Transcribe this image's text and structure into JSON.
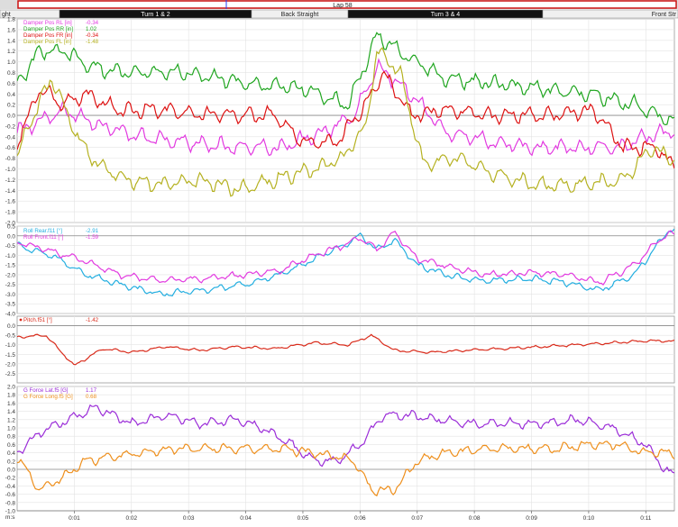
{
  "lap_bar": {
    "label": "Lap 58",
    "color": "#cc1111"
  },
  "sectors": [
    {
      "label": "ght",
      "dark": false
    },
    {
      "label": "Turn 1 & 2",
      "dark": true
    },
    {
      "label": "Back Straight",
      "dark": false
    },
    {
      "label": "Turn 3 & 4",
      "dark": true
    },
    {
      "label": "Front Str",
      "dark": false
    }
  ],
  "x_axis": {
    "unit": "m:s",
    "ticks": [
      "0:01",
      "0:02",
      "0:03",
      "0:04",
      "0:05",
      "0:06",
      "0:07",
      "0:08",
      "0:09",
      "0:10",
      "0:11"
    ]
  },
  "chart_data": [
    {
      "type": "line",
      "ylim": [
        -2.0,
        1.8
      ],
      "yticks": [
        "1.8",
        "1.6",
        "1.4",
        "1.2",
        "1.0",
        "0.8",
        "0.6",
        "0.4",
        "0.2",
        "0.0",
        "-0.2",
        "-0.4",
        "-0.6",
        "-0.8",
        "-1.0",
        "-1.2",
        "-1.4",
        "-1.6",
        "-1.8",
        "-2.0"
      ],
      "zero_line": true,
      "series": [
        {
          "name": "Damper Pos RL [in]",
          "value": "-0.34",
          "color": "#e23ae0",
          "points": [
            [
              0,
              -0.3
            ],
            [
              0.8,
              0.1
            ],
            [
              1.5,
              -0.2
            ],
            [
              2.2,
              -0.4
            ],
            [
              3.0,
              -0.5
            ],
            [
              3.8,
              -0.6
            ],
            [
              4.6,
              -0.6
            ],
            [
              5.4,
              -0.3
            ],
            [
              5.9,
              0.0
            ],
            [
              6.3,
              0.9
            ],
            [
              6.8,
              0.5
            ],
            [
              7.5,
              -0.3
            ],
            [
              8.3,
              -0.5
            ],
            [
              9.0,
              -0.6
            ],
            [
              9.8,
              -0.6
            ],
            [
              10.5,
              -0.6
            ],
            [
              11.0,
              -0.4
            ],
            [
              11.4,
              -0.3
            ]
          ]
        },
        {
          "name": "Damper Pos RR [in]",
          "value": "1.02",
          "color": "#1fa51f",
          "points": [
            [
              0,
              0.6
            ],
            [
              0.4,
              1.2
            ],
            [
              0.8,
              1.2
            ],
            [
              1.3,
              0.9
            ],
            [
              2.0,
              0.8
            ],
            [
              3.0,
              0.8
            ],
            [
              4.0,
              0.6
            ],
            [
              5.0,
              0.5
            ],
            [
              5.8,
              0.2
            ],
            [
              6.3,
              1.5
            ],
            [
              6.8,
              1.1
            ],
            [
              7.5,
              0.7
            ],
            [
              8.3,
              0.6
            ],
            [
              9.1,
              0.5
            ],
            [
              10.0,
              0.4
            ],
            [
              10.8,
              0.2
            ],
            [
              11.4,
              -0.1
            ]
          ]
        },
        {
          "name": "Damper Pos FR [in]",
          "value": "-0.34",
          "color": "#dd1111",
          "points": [
            [
              0,
              -0.5
            ],
            [
              0.4,
              0.5
            ],
            [
              0.8,
              0.2
            ],
            [
              1.2,
              0.4
            ],
            [
              1.8,
              0.1
            ],
            [
              2.5,
              0.1
            ],
            [
              3.5,
              0.0
            ],
            [
              4.5,
              0.0
            ],
            [
              5.0,
              -0.5
            ],
            [
              5.6,
              -0.5
            ],
            [
              6.1,
              0.2
            ],
            [
              6.4,
              0.8
            ],
            [
              6.9,
              0.0
            ],
            [
              7.5,
              0.1
            ],
            [
              8.3,
              0.0
            ],
            [
              9.3,
              0.0
            ],
            [
              10.1,
              0.1
            ],
            [
              10.6,
              -0.6
            ],
            [
              11.2,
              -0.6
            ],
            [
              11.4,
              -0.9
            ]
          ]
        },
        {
          "name": "Damper Pos FL [in]",
          "value": "-1.48",
          "color": "#b5b120",
          "points": [
            [
              0,
              -0.8
            ],
            [
              0.2,
              -0.2
            ],
            [
              0.6,
              0.7
            ],
            [
              1.1,
              -0.5
            ],
            [
              1.4,
              -0.9
            ],
            [
              1.9,
              -1.2
            ],
            [
              2.5,
              -1.3
            ],
            [
              3.2,
              -1.2
            ],
            [
              3.9,
              -1.4
            ],
            [
              4.5,
              -1.2
            ],
            [
              5.2,
              -1.0
            ],
            [
              5.7,
              -0.8
            ],
            [
              6.1,
              -0.2
            ],
            [
              6.3,
              1.2
            ],
            [
              6.7,
              0.8
            ],
            [
              7.1,
              -0.9
            ],
            [
              7.7,
              -0.8
            ],
            [
              8.4,
              -1.1
            ],
            [
              9.1,
              -1.3
            ],
            [
              9.8,
              -1.3
            ],
            [
              10.6,
              -1.2
            ],
            [
              11.1,
              -0.6
            ],
            [
              11.4,
              -0.8
            ]
          ]
        }
      ]
    },
    {
      "type": "line",
      "ylim": [
        -4.0,
        0.5
      ],
      "yticks": [
        "0.5",
        "0.0",
        "-0.5",
        "-1.0",
        "-1.5",
        "-2.0",
        "-2.5",
        "-3.0",
        "-3.5",
        "-4.0"
      ],
      "zero_line": true,
      "series": [
        {
          "name": "Roll Rear.f11 [°]",
          "value": "-2.91",
          "color": "#23aee0",
          "points": [
            [
              0,
              -0.5
            ],
            [
              0.6,
              -1.0
            ],
            [
              1.2,
              -2.0
            ],
            [
              1.8,
              -2.5
            ],
            [
              2.5,
              -3.0
            ],
            [
              3.2,
              -2.8
            ],
            [
              4.0,
              -2.5
            ],
            [
              4.6,
              -2.0
            ],
            [
              5.2,
              -1.2
            ],
            [
              5.7,
              -0.5
            ],
            [
              6.0,
              0.0
            ],
            [
              6.3,
              -0.7
            ],
            [
              6.6,
              -0.2
            ],
            [
              7.0,
              -1.5
            ],
            [
              7.6,
              -2.1
            ],
            [
              8.2,
              -2.3
            ],
            [
              9.0,
              -2.2
            ],
            [
              9.6,
              -2.4
            ],
            [
              10.2,
              -2.8
            ],
            [
              10.8,
              -2.0
            ],
            [
              11.2,
              -0.5
            ],
            [
              11.4,
              0.3
            ]
          ]
        },
        {
          "name": "Roll Front.f11 [°]",
          "value": "-1.59",
          "color": "#e23ae0",
          "points": [
            [
              0,
              -0.3
            ],
            [
              0.6,
              -0.8
            ],
            [
              1.2,
              -1.3
            ],
            [
              1.8,
              -2.0
            ],
            [
              2.5,
              -2.3
            ],
            [
              3.2,
              -2.2
            ],
            [
              4.0,
              -2.0
            ],
            [
              4.6,
              -1.8
            ],
            [
              5.2,
              -1.0
            ],
            [
              5.7,
              -0.5
            ],
            [
              6.0,
              -0.1
            ],
            [
              6.3,
              -0.7
            ],
            [
              6.6,
              0.2
            ],
            [
              7.0,
              -1.2
            ],
            [
              7.6,
              -1.6
            ],
            [
              8.2,
              -2.0
            ],
            [
              9.0,
              -1.9
            ],
            [
              9.6,
              -2.0
            ],
            [
              10.2,
              -2.4
            ],
            [
              10.8,
              -1.5
            ],
            [
              11.2,
              -0.3
            ],
            [
              11.4,
              0.1
            ]
          ]
        }
      ]
    },
    {
      "type": "line",
      "ylim": [
        -3.0,
        0.5
      ],
      "yticks": [
        "0.0",
        "-0.5",
        "-1.0",
        "-1.5",
        "-2.0",
        "-2.5"
      ],
      "zero_line": true,
      "series": [
        {
          "name": "Pitch.f51 [°]",
          "value": "-1.42",
          "color": "#d92b1b",
          "points": [
            [
              0,
              -0.6
            ],
            [
              0.5,
              -0.5
            ],
            [
              1.0,
              -2.1
            ],
            [
              1.5,
              -1.2
            ],
            [
              2.0,
              -1.4
            ],
            [
              2.6,
              -1.1
            ],
            [
              3.2,
              -1.3
            ],
            [
              3.8,
              -1.1
            ],
            [
              4.5,
              -1.2
            ],
            [
              5.2,
              -0.9
            ],
            [
              5.8,
              -1.0
            ],
            [
              6.2,
              -0.5
            ],
            [
              6.6,
              -1.3
            ],
            [
              7.2,
              -1.4
            ],
            [
              7.8,
              -1.3
            ],
            [
              8.5,
              -1.2
            ],
            [
              9.2,
              -1.1
            ],
            [
              9.8,
              -1.0
            ],
            [
              10.4,
              -0.9
            ],
            [
              11.0,
              -0.8
            ],
            [
              11.4,
              -0.8
            ]
          ]
        }
      ]
    },
    {
      "type": "line",
      "ylim": [
        -1.0,
        2.0
      ],
      "yticks": [
        "2.0",
        "1.8",
        "1.6",
        "1.4",
        "1.2",
        "1.0",
        "0.8",
        "0.6",
        "0.4",
        "0.2",
        "0.0",
        "-0.2",
        "-0.4",
        "-0.6",
        "-0.8",
        "-1.0"
      ],
      "zero_line": true,
      "series": [
        {
          "name": "G Force Lat.f5 [G]",
          "value": "1.17",
          "color": "#9b2dd8",
          "points": [
            [
              0,
              0.4
            ],
            [
              0.4,
              0.9
            ],
            [
              0.9,
              1.2
            ],
            [
              1.4,
              1.5
            ],
            [
              2.0,
              1.1
            ],
            [
              2.6,
              1.3
            ],
            [
              3.2,
              1.1
            ],
            [
              3.8,
              1.2
            ],
            [
              4.3,
              1.0
            ],
            [
              4.8,
              0.6
            ],
            [
              5.2,
              0.2
            ],
            [
              5.6,
              0.2
            ],
            [
              6.0,
              0.6
            ],
            [
              6.4,
              1.3
            ],
            [
              6.9,
              1.3
            ],
            [
              7.4,
              1.2
            ],
            [
              8.0,
              1.1
            ],
            [
              8.6,
              1.1
            ],
            [
              9.2,
              1.1
            ],
            [
              9.8,
              1.2
            ],
            [
              10.4,
              1.0
            ],
            [
              11.0,
              0.6
            ],
            [
              11.4,
              -0.1
            ]
          ]
        },
        {
          "name": "G Force Long.f5 [G]",
          "value": "0.68",
          "color": "#ee8f1c",
          "points": [
            [
              0,
              0.3
            ],
            [
              0.4,
              -0.5
            ],
            [
              0.8,
              -0.2
            ],
            [
              1.2,
              0.2
            ],
            [
              1.6,
              0.3
            ],
            [
              2.2,
              0.4
            ],
            [
              2.8,
              0.5
            ],
            [
              3.4,
              0.5
            ],
            [
              4.0,
              0.5
            ],
            [
              4.6,
              0.5
            ],
            [
              5.2,
              0.4
            ],
            [
              5.6,
              0.3
            ],
            [
              5.9,
              0.2
            ],
            [
              6.2,
              -0.5
            ],
            [
              6.6,
              -0.5
            ],
            [
              7.0,
              0.2
            ],
            [
              7.5,
              0.4
            ],
            [
              8.2,
              0.5
            ],
            [
              8.8,
              0.5
            ],
            [
              9.4,
              0.5
            ],
            [
              10.0,
              0.6
            ],
            [
              10.5,
              0.6
            ],
            [
              11.0,
              0.4
            ],
            [
              11.4,
              0.4
            ]
          ]
        }
      ]
    }
  ]
}
